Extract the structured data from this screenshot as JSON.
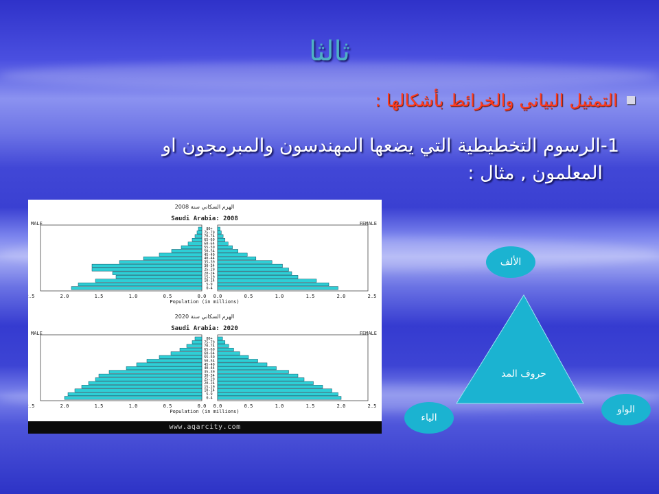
{
  "slide": {
    "title": "ثالثا",
    "bullet": "التمثيل البياني والخرائط بأشكالها :",
    "body_line1": "1-الرسوم التخطيطية التي يضعها المهندسون والمبرمجون  او",
    "body_line2": "المعلمون , مثال :"
  },
  "pyramids": [
    {
      "year_label": "الهرم السكاني سنة 2008",
      "subtitle": "Saudi Arabia: 2008",
      "left_label": "MALE",
      "right_label": "FEMALE",
      "x_label": "Population (in millions)",
      "ticks": [
        "2.5",
        "2.0",
        "1.5",
        "1.0",
        "0.5",
        "0.0",
        "0.0",
        "0.5",
        "1.0",
        "1.5",
        "2.0",
        "2.5"
      ],
      "age_groups": [
        "80+",
        "75-79",
        "70-74",
        "65-69",
        "60-64",
        "55-59",
        "50-54",
        "45-49",
        "40-44",
        "35-39",
        "30-34",
        "25-29",
        "20-24",
        "15-19",
        "10-14",
        "5-9",
        "0-4"
      ],
      "male": [
        0.05,
        0.07,
        0.1,
        0.14,
        0.2,
        0.3,
        0.44,
        0.62,
        0.85,
        1.2,
        1.6,
        1.6,
        1.3,
        1.25,
        1.55,
        1.8,
        1.9
      ],
      "female": [
        0.04,
        0.06,
        0.09,
        0.12,
        0.17,
        0.24,
        0.33,
        0.48,
        0.62,
        0.88,
        1.05,
        1.15,
        1.2,
        1.3,
        1.6,
        1.8,
        1.95
      ]
    },
    {
      "year_label": "الهرم السكاني سنة 2020",
      "subtitle": "Saudi Arabia: 2020",
      "left_label": "MALE",
      "right_label": "FEMALE",
      "x_label": "Population (in millions)",
      "ticks": [
        "2.5",
        "2.0",
        "1.5",
        "1.0",
        "0.5",
        "0.0",
        "0.0",
        "0.5",
        "1.0",
        "1.5",
        "2.0",
        "2.5"
      ],
      "age_groups": [
        "80+",
        "75-79",
        "70-74",
        "65-69",
        "60-64",
        "55-59",
        "50-54",
        "45-49",
        "40-44",
        "35-39",
        "30-34",
        "25-29",
        "20-24",
        "15-19",
        "10-14",
        "5-9",
        "0-4"
      ],
      "male": [
        0.1,
        0.14,
        0.22,
        0.32,
        0.45,
        0.62,
        0.8,
        0.95,
        1.1,
        1.35,
        1.5,
        1.55,
        1.65,
        1.75,
        1.85,
        1.95,
        2.0
      ],
      "female": [
        0.08,
        0.12,
        0.18,
        0.26,
        0.36,
        0.5,
        0.65,
        0.8,
        0.95,
        1.15,
        1.3,
        1.4,
        1.55,
        1.7,
        1.85,
        1.95,
        2.0
      ]
    }
  ],
  "footer": {
    "url": "www.aqarcity.com"
  },
  "diagram": {
    "top": "الألف",
    "center": "حروف المد",
    "bottom_left": "الياء",
    "bottom_right": "الواو",
    "fill_color": "#1bb3d1"
  }
}
